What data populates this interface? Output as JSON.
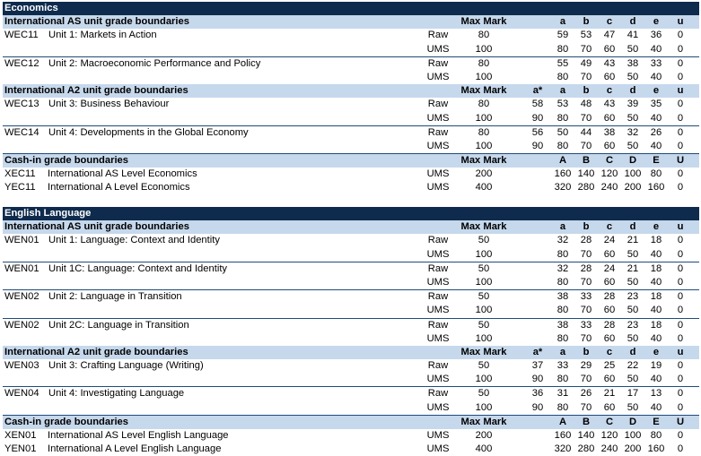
{
  "economics": {
    "title": "Economics",
    "as_header": {
      "title": "International AS unit grade boundaries",
      "max": "Max Mark",
      "grades": [
        "",
        "a",
        "b",
        "c",
        "d",
        "e",
        "u"
      ]
    },
    "as_units": [
      {
        "code": "WEC11",
        "name": "Unit 1: Markets in Action",
        "raw": {
          "type": "Raw",
          "max": "80",
          "g": [
            "",
            "59",
            "53",
            "47",
            "41",
            "36",
            "0"
          ]
        },
        "ums": {
          "type": "UMS",
          "max": "100",
          "g": [
            "",
            "80",
            "70",
            "60",
            "50",
            "40",
            "0"
          ]
        }
      },
      {
        "code": "WEC12",
        "name": "Unit 2: Macroeconomic Performance and Policy",
        "raw": {
          "type": "Raw",
          "max": "80",
          "g": [
            "",
            "55",
            "49",
            "43",
            "38",
            "33",
            "0"
          ]
        },
        "ums": {
          "type": "UMS",
          "max": "100",
          "g": [
            "",
            "80",
            "70",
            "60",
            "50",
            "40",
            "0"
          ]
        }
      }
    ],
    "a2_header": {
      "title": "International A2 unit grade boundaries",
      "max": "Max Mark",
      "grades": [
        "a*",
        "a",
        "b",
        "c",
        "d",
        "e",
        "u"
      ]
    },
    "a2_units": [
      {
        "code": "WEC13",
        "name": "Unit 3: Business Behaviour",
        "raw": {
          "type": "Raw",
          "max": "80",
          "g": [
            "58",
            "53",
            "48",
            "43",
            "39",
            "35",
            "0"
          ]
        },
        "ums": {
          "type": "UMS",
          "max": "100",
          "g": [
            "90",
            "80",
            "70",
            "60",
            "50",
            "40",
            "0"
          ]
        }
      },
      {
        "code": "WEC14",
        "name": "Unit 4: Developments in the Global Economy",
        "raw": {
          "type": "Raw",
          "max": "80",
          "g": [
            "56",
            "50",
            "44",
            "38",
            "32",
            "26",
            "0"
          ]
        },
        "ums": {
          "type": "UMS",
          "max": "100",
          "g": [
            "90",
            "80",
            "70",
            "60",
            "50",
            "40",
            "0"
          ]
        }
      }
    ],
    "cash_header": {
      "title": "Cash-in grade boundaries",
      "max": "Max Mark",
      "grades": [
        "",
        "A",
        "B",
        "C",
        "D",
        "E",
        "U"
      ]
    },
    "cash_rows": [
      {
        "code": "XEC11",
        "name": "International AS Level Economics",
        "type": "UMS",
        "max": "200",
        "g": [
          "",
          "160",
          "140",
          "120",
          "100",
          "80",
          "0"
        ]
      },
      {
        "code": "YEC11",
        "name": "International A Level Economics",
        "type": "UMS",
        "max": "400",
        "g": [
          "",
          "320",
          "280",
          "240",
          "200",
          "160",
          "0"
        ]
      }
    ]
  },
  "english": {
    "title": "English Language",
    "as_header": {
      "title": "International AS unit grade boundaries",
      "max": "Max Mark",
      "grades": [
        "",
        "a",
        "b",
        "c",
        "d",
        "e",
        "u"
      ]
    },
    "as_units": [
      {
        "code": "WEN01",
        "name": "Unit 1: Language: Context and Identity",
        "raw": {
          "type": "Raw",
          "max": "50",
          "g": [
            "",
            "32",
            "28",
            "24",
            "21",
            "18",
            "0"
          ]
        },
        "ums": {
          "type": "UMS",
          "max": "100",
          "g": [
            "",
            "80",
            "70",
            "60",
            "50",
            "40",
            "0"
          ]
        }
      },
      {
        "code": "WEN01",
        "name": "Unit 1C: Language: Context and Identity",
        "raw": {
          "type": "Raw",
          "max": "50",
          "g": [
            "",
            "32",
            "28",
            "24",
            "21",
            "18",
            "0"
          ]
        },
        "ums": {
          "type": "UMS",
          "max": "100",
          "g": [
            "",
            "80",
            "70",
            "60",
            "50",
            "40",
            "0"
          ]
        }
      },
      {
        "code": "WEN02",
        "name": "Unit 2: Language in Transition",
        "raw": {
          "type": "Raw",
          "max": "50",
          "g": [
            "",
            "38",
            "33",
            "28",
            "23",
            "18",
            "0"
          ]
        },
        "ums": {
          "type": "UMS",
          "max": "100",
          "g": [
            "",
            "80",
            "70",
            "60",
            "50",
            "40",
            "0"
          ]
        }
      },
      {
        "code": "WEN02",
        "name": "Unit 2C: Language in Transition",
        "raw": {
          "type": "Raw",
          "max": "50",
          "g": [
            "",
            "38",
            "33",
            "28",
            "23",
            "18",
            "0"
          ]
        },
        "ums": {
          "type": "UMS",
          "max": "100",
          "g": [
            "",
            "80",
            "70",
            "60",
            "50",
            "40",
            "0"
          ]
        }
      }
    ],
    "a2_header": {
      "title": "International A2 unit grade boundaries",
      "max": "Max Mark",
      "grades": [
        "a*",
        "a",
        "b",
        "c",
        "d",
        "e",
        "u"
      ]
    },
    "a2_units": [
      {
        "code": "WEN03",
        "name": "Unit 3: Crafting Language (Writing)",
        "raw": {
          "type": "Raw",
          "max": "50",
          "g": [
            "37",
            "33",
            "29",
            "25",
            "22",
            "19",
            "0"
          ]
        },
        "ums": {
          "type": "UMS",
          "max": "100",
          "g": [
            "90",
            "80",
            "70",
            "60",
            "50",
            "40",
            "0"
          ]
        }
      },
      {
        "code": "WEN04",
        "name": "Unit 4: Investigating Language",
        "raw": {
          "type": "Raw",
          "max": "50",
          "g": [
            "36",
            "31",
            "26",
            "21",
            "17",
            "13",
            "0"
          ]
        },
        "ums": {
          "type": "UMS",
          "max": "100",
          "g": [
            "90",
            "80",
            "70",
            "60",
            "50",
            "40",
            "0"
          ]
        }
      }
    ],
    "cash_header": {
      "title": "Cash-in grade boundaries",
      "max": "Max Mark",
      "grades": [
        "",
        "A",
        "B",
        "C",
        "D",
        "E",
        "U"
      ]
    },
    "cash_rows": [
      {
        "code": "XEN01",
        "name": "International AS Level English Language",
        "type": "UMS",
        "max": "200",
        "g": [
          "",
          "160",
          "140",
          "120",
          "100",
          "80",
          "0"
        ]
      },
      {
        "code": "YEN01",
        "name": "International A Level English Language",
        "type": "UMS",
        "max": "400",
        "g": [
          "",
          "320",
          "280",
          "240",
          "200",
          "160",
          "0"
        ]
      }
    ]
  }
}
